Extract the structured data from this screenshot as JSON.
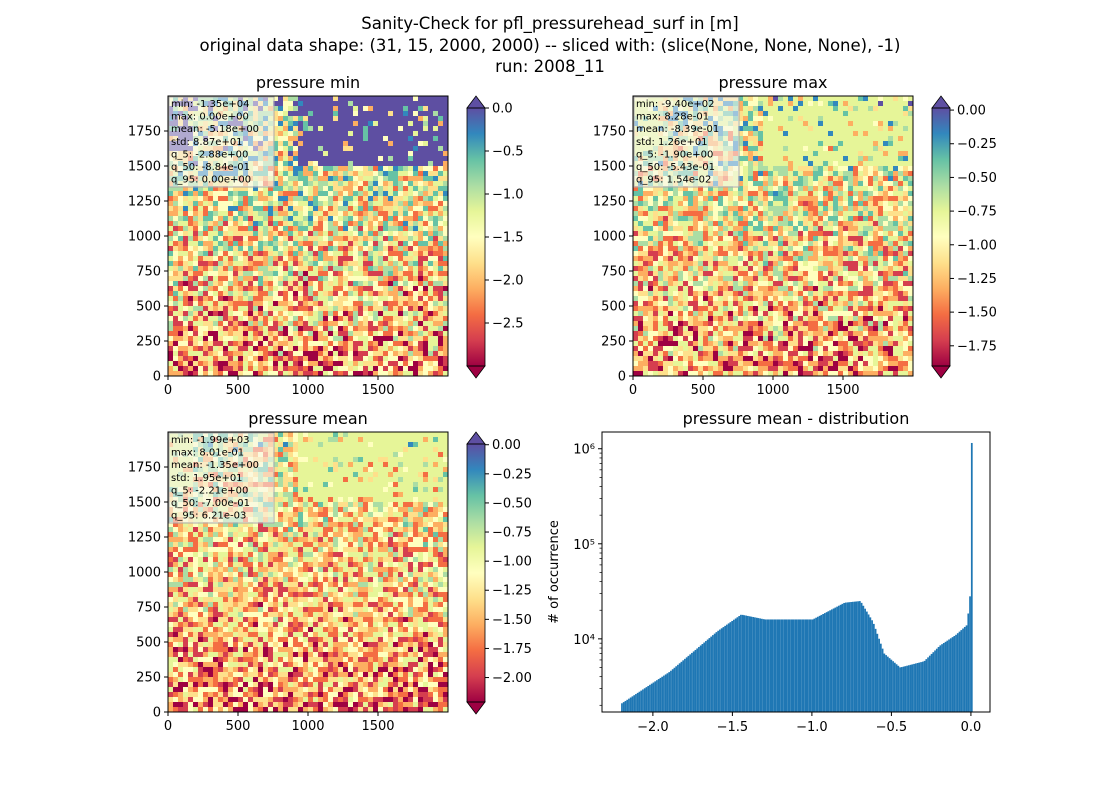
{
  "figure": {
    "title_line1": "Sanity-Check for pfl_pressurehead_surf in [m]",
    "title_line2": "original data shape: (31, 15, 2000, 2000) -- sliced with: (slice(None, None, None), -1)",
    "title_line3": "run: 2008_11"
  },
  "colors": {
    "colormap": [
      "#9e0142",
      "#d53e4f",
      "#f46d43",
      "#fdae61",
      "#fee08b",
      "#ffffbf",
      "#e6f598",
      "#abdda4",
      "#66c2a5",
      "#3288bd",
      "#5e4fa2"
    ],
    "histogram_bar": "#1f77b4",
    "stats_box_bg": "#f5f5f5"
  },
  "chart_data": [
    {
      "type": "heatmap",
      "title": "pressure min",
      "xlim": [
        0,
        2000
      ],
      "ylim": [
        0,
        2000
      ],
      "xticks": [
        0,
        500,
        1000,
        1500
      ],
      "yticks": [
        0,
        250,
        500,
        750,
        1000,
        1250,
        1500,
        1750
      ],
      "colorbar": {
        "vmin": -3.0,
        "vmax": 0.0,
        "ticks": [
          "0.0",
          "−0.5",
          "−1.0",
          "−1.5",
          "−2.0",
          "−2.5"
        ],
        "tick_values": [
          0.0,
          -0.5,
          -1.0,
          -1.5,
          -2.0,
          -2.5
        ],
        "extend": "both"
      },
      "stats": [
        "min: -1.35e+04",
        "max: 0.00e+00",
        "mean: -5.18e+00",
        "std: 8.87e+01",
        "q_5: -2.88e+00",
        "q_50: -8.84e-01",
        "q_95: 0.00e+00"
      ]
    },
    {
      "type": "heatmap",
      "title": "pressure max",
      "xlim": [
        0,
        2000
      ],
      "ylim": [
        0,
        2000
      ],
      "xticks": [
        0,
        500,
        1000,
        1500
      ],
      "yticks": [
        0,
        250,
        500,
        750,
        1000,
        1250,
        1500,
        1750
      ],
      "colorbar": {
        "vmin": -1.9,
        "vmax": 0.0154,
        "ticks": [
          "0.00",
          "−0.25",
          "−0.50",
          "−0.75",
          "−1.00",
          "−1.25",
          "−1.50",
          "−1.75"
        ],
        "tick_values": [
          0.0,
          -0.25,
          -0.5,
          -0.75,
          -1.0,
          -1.25,
          -1.5,
          -1.75
        ],
        "extend": "both"
      },
      "stats": [
        "min: -9.40e+02",
        "max: 8.28e-01",
        "mean: -8.39e-01",
        "std: 1.26e+01",
        "q_5: -1.90e+00",
        "q_50: -5.43e-01",
        "q_95: 1.54e-02"
      ]
    },
    {
      "type": "heatmap",
      "title": "pressure mean",
      "xlim": [
        0,
        2000
      ],
      "ylim": [
        0,
        2000
      ],
      "xticks": [
        0,
        500,
        1000,
        1500
      ],
      "yticks": [
        0,
        250,
        500,
        750,
        1000,
        1250,
        1500,
        1750
      ],
      "colorbar": {
        "vmin": -2.21,
        "vmax": 0.0062,
        "ticks": [
          "0.00",
          "−0.25",
          "−0.50",
          "−0.75",
          "−1.00",
          "−1.25",
          "−1.50",
          "−1.75",
          "−2.00"
        ],
        "tick_values": [
          0.0,
          -0.25,
          -0.5,
          -0.75,
          -1.0,
          -1.25,
          -1.5,
          -1.75,
          -2.0
        ],
        "extend": "both"
      },
      "stats": [
        "min: -1.99e+03",
        "max: 8.01e-01",
        "mean: -1.35e+00",
        "std: 1.95e+01",
        "q_5: -2.21e+00",
        "q_50: -7.00e-01",
        "q_95: 6.21e-03"
      ]
    },
    {
      "type": "bar",
      "title": "pressure mean - distribution",
      "ylabel": "# of occurrence",
      "xlabel": "",
      "log_y": true,
      "xlim": [
        -2.32,
        0.12
      ],
      "ylim": [
        1700,
        1500000
      ],
      "xticks": [
        -2.0,
        -1.5,
        -1.0,
        -0.5,
        0.0
      ],
      "xtick_labels": [
        "−2.0",
        "−1.5",
        "−1.0",
        "−0.5",
        "0.0"
      ],
      "yticks": [
        10000,
        100000,
        1000000
      ],
      "ytick_labels": [
        "10⁴",
        "10⁵",
        "10⁶"
      ],
      "x": [
        -2.2,
        -1.9,
        -1.6,
        -1.45,
        -1.3,
        -1.0,
        -0.8,
        -0.7,
        -0.62,
        -0.55,
        -0.45,
        -0.3,
        -0.2,
        -0.1,
        -0.03,
        -0.01,
        0.0
      ],
      "values": [
        2100,
        4500,
        12000,
        18000,
        16000,
        16000,
        24000,
        25000,
        15000,
        7000,
        5000,
        5800,
        8500,
        11000,
        14000,
        28000,
        1150000
      ]
    }
  ]
}
